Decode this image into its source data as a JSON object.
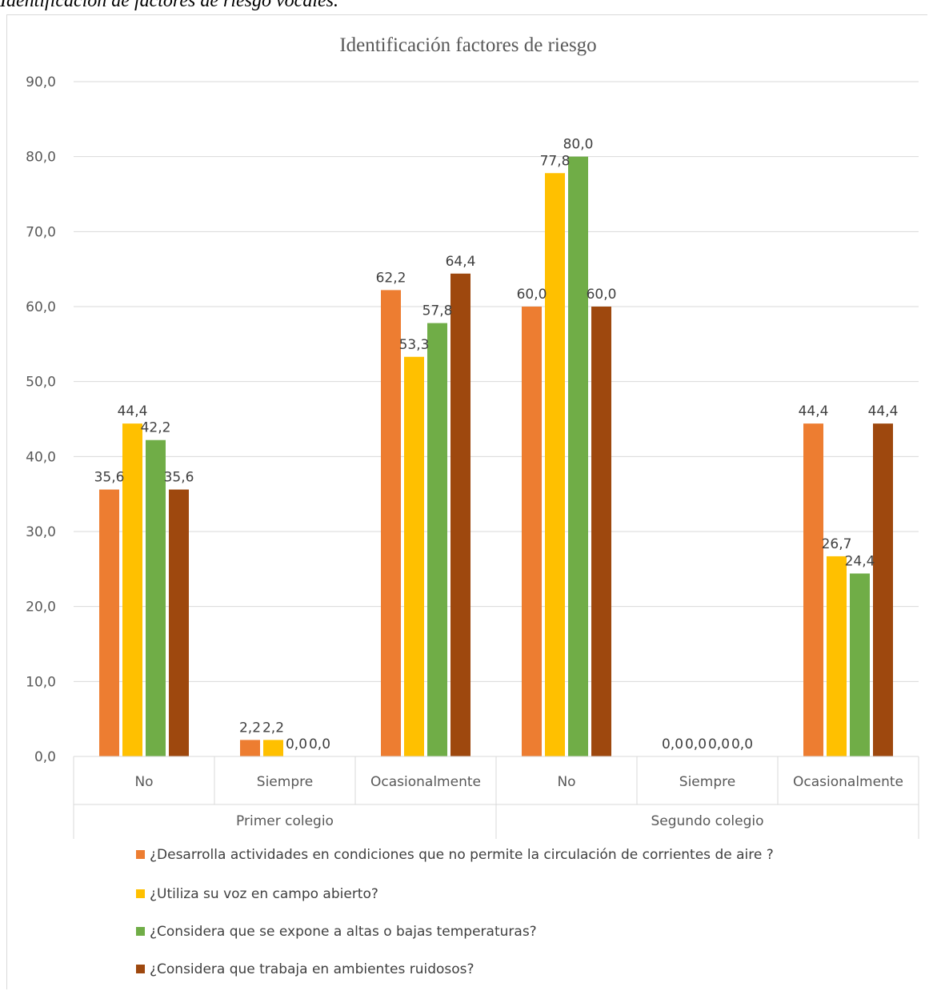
{
  "caption": "Identificación de factores de riesgo vocales.",
  "chart_data": {
    "type": "bar",
    "title": "Identificación factores de riesgo",
    "groups": [
      {
        "name": "Primer colegio",
        "categories": [
          "No",
          "Siempre",
          "Ocasionalmente"
        ]
      },
      {
        "name": "Segundo colegio",
        "categories": [
          "No",
          "Siempre",
          "Ocasionalmente"
        ]
      }
    ],
    "series": [
      {
        "name": "¿Desarrolla actividades en condiciones que no permite la circulación de corrientes de aire ?",
        "color": "#ed7d31",
        "values": [
          35.6,
          2.2,
          62.2,
          60.0,
          0.0,
          44.4
        ]
      },
      {
        "name": "¿Utiliza su voz en campo abierto?",
        "color": "#ffc000",
        "values": [
          44.4,
          2.2,
          53.3,
          77.8,
          0.0,
          26.7
        ]
      },
      {
        "name": "¿Considera que se expone a altas o bajas temperaturas?",
        "color": "#70ad47",
        "values": [
          42.2,
          0.0,
          57.8,
          80.0,
          0.0,
          24.4
        ]
      },
      {
        "name": "¿Considera que trabaja en ambientes ruidosos?",
        "color": "#9e480e",
        "values": [
          35.6,
          0.0,
          64.4,
          60.0,
          0.0,
          44.4
        ]
      }
    ],
    "ylim": [
      0,
      90
    ],
    "yticks": [
      "0,0",
      "10,0",
      "20,0",
      "30,0",
      "40,0",
      "50,0",
      "60,0",
      "70,0",
      "80,0",
      "90,0"
    ],
    "grid": true,
    "legend_position": "bottom",
    "data_labels": true
  }
}
